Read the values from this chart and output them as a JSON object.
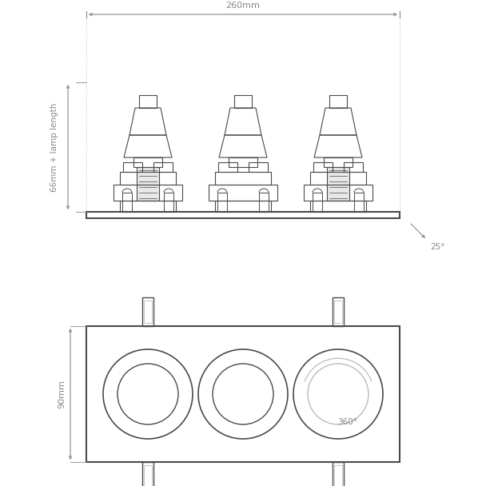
{
  "bg_color": "#ffffff",
  "line_color": "#4a4a4a",
  "dim_color": "#888888",
  "light_line_color": "#bbbbbb",
  "dim_260": "260mm",
  "dim_66": "66mm + lamp length",
  "dim_90": "90mm",
  "dim_25": "25°",
  "dim_360": "360°",
  "fig_width": 6.08,
  "fig_height": 6.08,
  "dpi": 100
}
